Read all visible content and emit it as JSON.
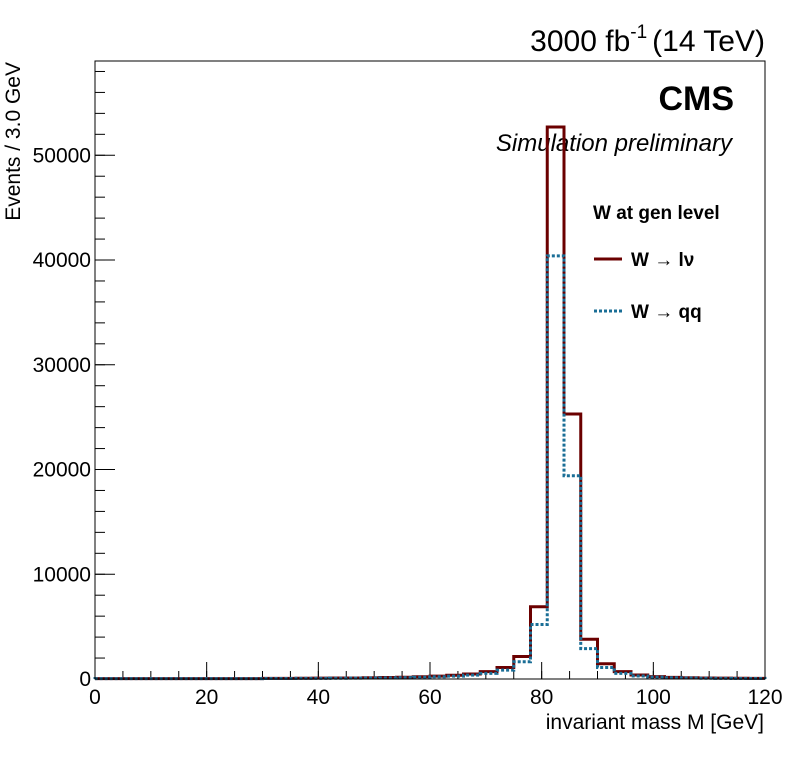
{
  "chart_data": {
    "type": "bar",
    "style": "step-histogram",
    "lumi": {
      "value": "3000 fb",
      "exponent": "-1",
      "energy": "(14 TeV)"
    },
    "experiment": "CMS",
    "subtitle": "Simulation preliminary",
    "xlabel": "invariant mass M [GeV]",
    "ylabel": "Events / 3.0 GeV",
    "xlim": [
      0,
      120
    ],
    "ylim": [
      0,
      59000
    ],
    "x_ticks": [
      0,
      20,
      40,
      60,
      80,
      100,
      120
    ],
    "x_tick_labels": [
      "0",
      "20",
      "40",
      "60",
      "80",
      "100",
      "120"
    ],
    "y_ticks": [
      0,
      10000,
      20000,
      30000,
      40000,
      50000
    ],
    "y_tick_labels": [
      "0",
      "10000",
      "20000",
      "30000",
      "40000",
      "50000"
    ],
    "grid": false,
    "legend_position": "top-right",
    "legend_header": "W at gen level",
    "bin_edges": [
      0,
      3,
      6,
      9,
      12,
      15,
      18,
      21,
      24,
      27,
      30,
      33,
      36,
      39,
      42,
      45,
      48,
      51,
      54,
      57,
      60,
      63,
      66,
      69,
      72,
      75,
      78,
      81,
      84,
      87,
      90,
      93,
      96,
      99,
      102,
      105,
      108,
      111,
      114,
      117,
      120
    ],
    "series": [
      {
        "name": "W → lν",
        "color": "#6b0000",
        "dash": "solid",
        "values": [
          40,
          40,
          40,
          40,
          40,
          40,
          40,
          40,
          40,
          40,
          60,
          60,
          70,
          80,
          90,
          100,
          120,
          140,
          170,
          220,
          280,
          360,
          480,
          700,
          1100,
          2150,
          6900,
          52700,
          25300,
          3800,
          1450,
          700,
          380,
          230,
          160,
          120,
          100,
          80,
          70,
          60
        ]
      },
      {
        "name": "W → qq",
        "color": "#1a6e96",
        "dash": "dotted",
        "values": [
          30,
          30,
          30,
          30,
          30,
          30,
          30,
          30,
          30,
          30,
          45,
          45,
          55,
          60,
          70,
          80,
          90,
          110,
          130,
          170,
          220,
          280,
          370,
          540,
          850,
          1650,
          5200,
          40400,
          19400,
          2900,
          1100,
          540,
          290,
          180,
          120,
          90,
          75,
          60,
          50,
          45
        ]
      }
    ]
  }
}
